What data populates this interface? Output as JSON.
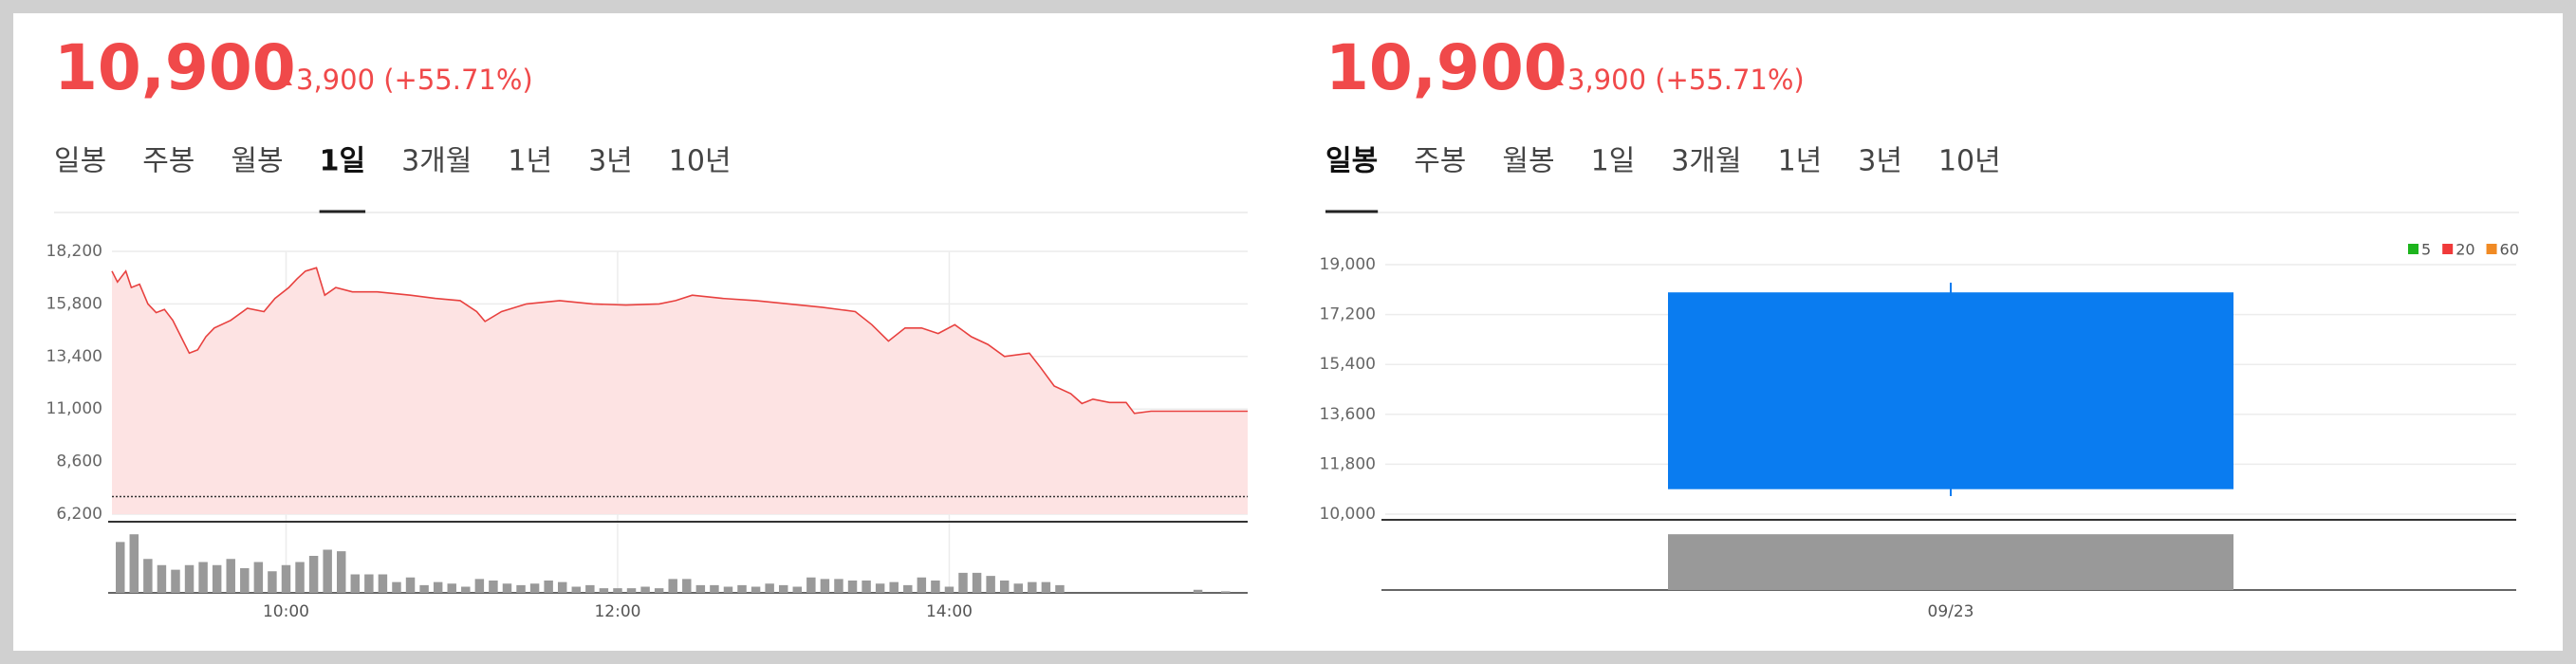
{
  "panels": [
    {
      "price": "10,900",
      "change": "3,900 (+55.71%)",
      "tabs": [
        "일봉",
        "주봉",
        "월봉",
        "1일",
        "3개월",
        "1년",
        "3년",
        "10년"
      ],
      "active_tab": 3
    },
    {
      "price": "10,900",
      "change": "3,900 (+55.71%)",
      "tabs": [
        "일봉",
        "주봉",
        "월봉",
        "1일",
        "3개월",
        "1년",
        "3년",
        "10년"
      ],
      "active_tab": 0
    }
  ],
  "chart_data": [
    {
      "type": "area",
      "x": [
        537,
        539,
        542,
        544,
        547,
        550,
        553,
        556,
        559,
        562,
        565,
        568,
        571,
        574,
        580,
        586,
        592,
        596,
        601,
        604,
        607,
        611,
        614,
        618,
        624,
        633,
        645,
        654,
        663,
        669,
        672,
        678,
        687,
        699,
        711,
        723,
        735,
        741,
        747,
        758,
        770,
        782,
        794,
        806,
        812,
        818,
        824,
        830,
        836,
        842,
        848,
        854,
        860,
        869,
        873,
        878,
        884,
        888,
        892,
        898,
        904,
        907,
        913,
        925,
        948
      ],
      "values": [
        17300,
        16800,
        17300,
        16550,
        16700,
        15800,
        15400,
        15550,
        15050,
        14300,
        13550,
        13700,
        14300,
        14700,
        15050,
        15600,
        15450,
        16050,
        16550,
        16950,
        17300,
        17450,
        16200,
        16550,
        16350,
        16350,
        16200,
        16050,
        15950,
        15450,
        15000,
        15450,
        15800,
        15950,
        15800,
        15750,
        15800,
        15950,
        16200,
        16050,
        15950,
        15800,
        15650,
        15450,
        14850,
        14100,
        14700,
        14700,
        14450,
        14850,
        14300,
        13950,
        13400,
        13550,
        12900,
        12050,
        11700,
        11250,
        11450,
        11300,
        11300,
        10800,
        10900,
        10900,
        10900
      ],
      "color": "#e8413f",
      "fill": "#fde3e3",
      "reference_line": 7000,
      "xlim": [
        537,
        948
      ],
      "ylim": [
        6200,
        18200
      ],
      "yticks": [
        {
          "value": 18200,
          "label": "18,200"
        },
        {
          "value": 15800,
          "label": "15,800"
        },
        {
          "value": 13400,
          "label": "13,400"
        },
        {
          "value": 11000,
          "label": "11,000"
        },
        {
          "value": 8600,
          "label": "8,600"
        },
        {
          "value": 6200,
          "label": "6,200"
        }
      ],
      "xticks": [
        {
          "value": 600,
          "label": "10:00"
        },
        {
          "value": 720,
          "label": "12:00"
        },
        {
          "value": 840,
          "label": "14:00"
        }
      ],
      "grid": true,
      "volume": {
        "x": [
          540,
          545,
          550,
          555,
          560,
          565,
          570,
          575,
          580,
          585,
          590,
          595,
          600,
          605,
          610,
          615,
          620,
          625,
          630,
          635,
          640,
          645,
          650,
          655,
          660,
          665,
          670,
          675,
          680,
          685,
          690,
          695,
          700,
          705,
          710,
          715,
          720,
          725,
          730,
          735,
          740,
          745,
          750,
          755,
          760,
          765,
          770,
          775,
          780,
          785,
          790,
          795,
          800,
          805,
          810,
          815,
          820,
          825,
          830,
          835,
          840,
          845,
          850,
          855,
          860,
          865,
          870,
          875,
          880,
          930,
          940
        ],
        "values": [
          33,
          38,
          22,
          18,
          15,
          18,
          20,
          18,
          22,
          16,
          20,
          14,
          18,
          20,
          24,
          28,
          27,
          12,
          12,
          12,
          7,
          10,
          5,
          7,
          6,
          4,
          9,
          8,
          6,
          5,
          6,
          8,
          7,
          4,
          5,
          3,
          3,
          3,
          4,
          3,
          9,
          9,
          5,
          5,
          4,
          5,
          4,
          6,
          5,
          4,
          10,
          9,
          9,
          8,
          8,
          6,
          7,
          5,
          10,
          8,
          4,
          13,
          13,
          11,
          8,
          6,
          7,
          7,
          5,
          2,
          1
        ],
        "color": "#999999",
        "ylim": [
          0,
          40
        ]
      }
    },
    {
      "type": "candlestick",
      "categories": [
        "09/23"
      ],
      "open": [
        18000
      ],
      "high": [
        18350
      ],
      "low": [
        10650
      ],
      "close": [
        10900
      ],
      "color": "#0a7cf0",
      "ylim": [
        10000,
        19000
      ],
      "yticks": [
        {
          "value": 19000,
          "label": "19,000"
        },
        {
          "value": 17200,
          "label": "17,200"
        },
        {
          "value": 15400,
          "label": "15,400"
        },
        {
          "value": 13600,
          "label": "13,600"
        },
        {
          "value": 11800,
          "label": "11,800"
        },
        {
          "value": 10000,
          "label": "10,000"
        }
      ],
      "grid": true,
      "legend": [
        {
          "name": "5",
          "color": "#1db41d"
        },
        {
          "name": "20",
          "color": "#f03a3a"
        },
        {
          "name": "60",
          "color": "#f08a24"
        }
      ],
      "volume": {
        "values": [
          38
        ],
        "color": "#999999",
        "ylim": [
          0,
          42
        ]
      }
    }
  ]
}
